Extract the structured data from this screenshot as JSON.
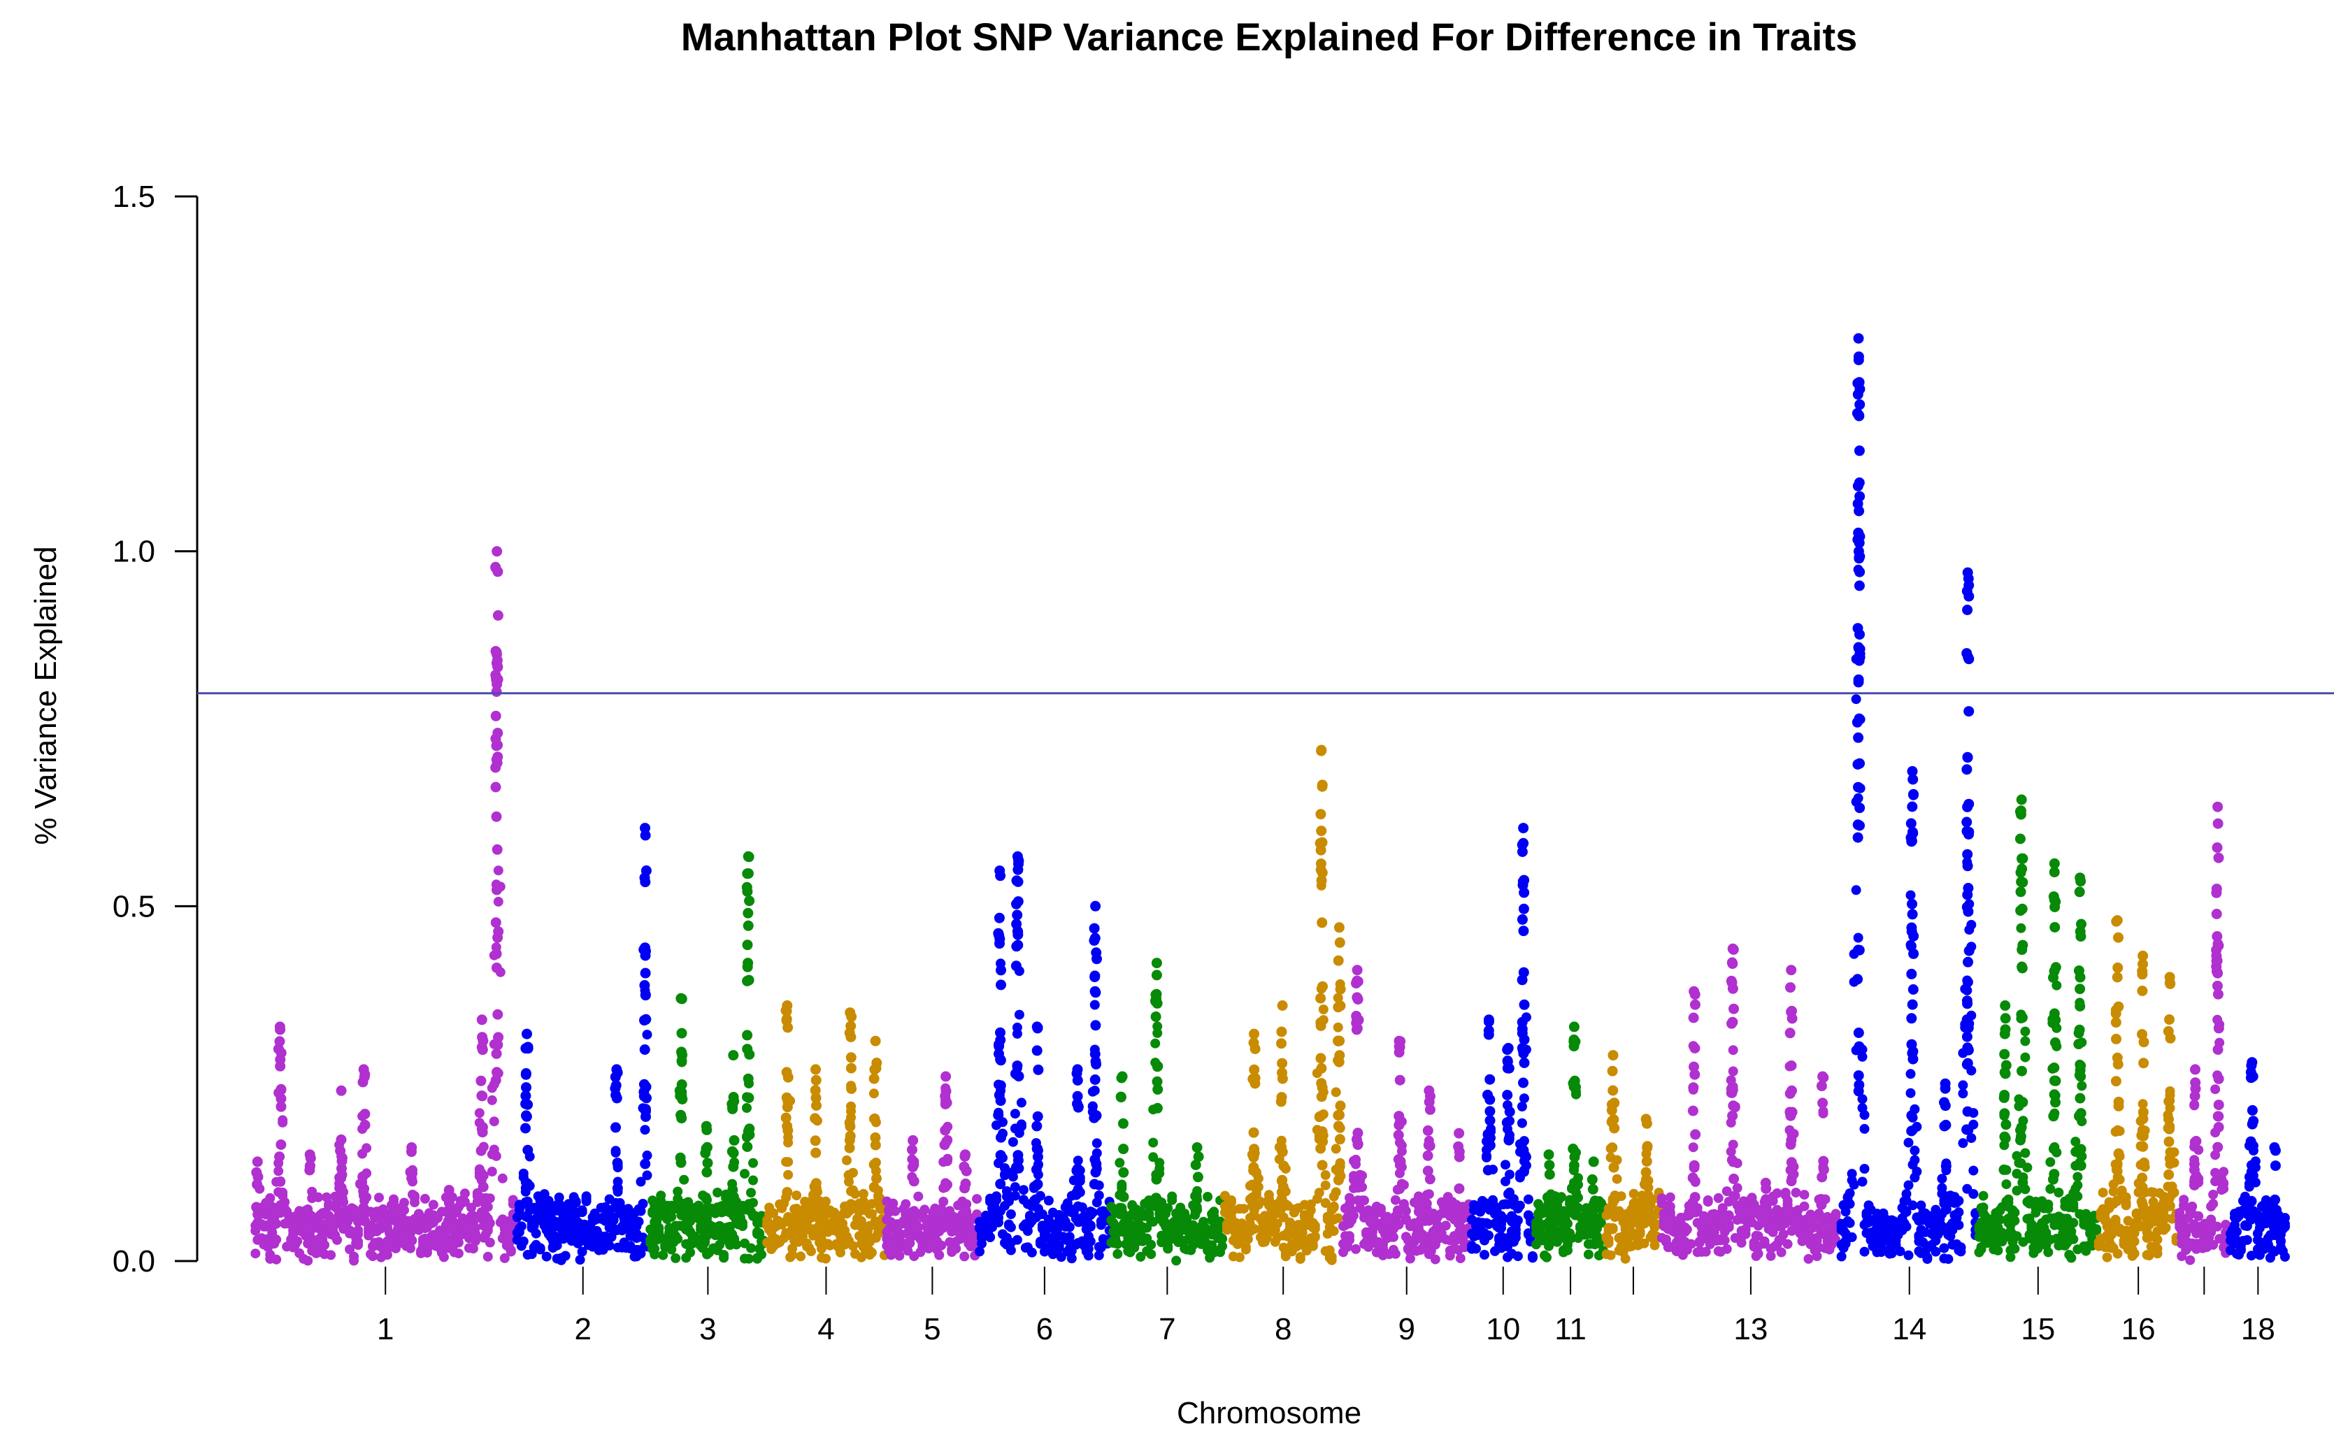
{
  "chart_data": {
    "type": "scatter",
    "subtype": "manhattan",
    "title": "Manhattan Plot SNP Variance Explained For Difference in Traits",
    "xlabel": "Chromosome",
    "ylabel": "% Variance Explained",
    "ylim": [
      0,
      1.5
    ],
    "yticks": [
      {
        "value": 0.0,
        "label": "0.0"
      },
      {
        "value": 0.5,
        "label": "0.5"
      },
      {
        "value": 1.0,
        "label": "1.0"
      },
      {
        "value": 1.5,
        "label": "1.5"
      }
    ],
    "threshold": {
      "value": 0.8,
      "color": "#4B4BB0"
    },
    "grid": false,
    "legend": "none",
    "colors": {
      "purple": "#B030D0",
      "blue": "#0000F5",
      "green": "#078A07",
      "gold": "#C98B00"
    },
    "chromosomes": [
      {
        "id": 1,
        "tick_label": "1",
        "length": 175,
        "color": "purple",
        "peaks": [
          [
            2,
            0.14
          ],
          [
            17,
            0.33
          ],
          [
            37,
            0.15
          ],
          [
            58,
            0.24
          ],
          [
            73,
            0.27
          ],
          [
            105,
            0.16
          ],
          [
            130,
            0.1
          ],
          [
            152,
            0.34
          ],
          [
            162,
            1.0
          ]
        ]
      },
      {
        "id": 2,
        "tick_label": "2",
        "length": 89,
        "color": "blue",
        "peaks": [
          [
            7,
            0.32
          ],
          [
            35,
            0.08
          ],
          [
            67,
            0.27
          ],
          [
            86,
            0.61
          ]
        ]
      },
      {
        "id": 3,
        "tick_label": "3",
        "length": 78,
        "color": "green",
        "peaks": [
          [
            21,
            0.37
          ],
          [
            38,
            0.19
          ],
          [
            56,
            0.29
          ],
          [
            66,
            0.57
          ]
        ]
      },
      {
        "id": 4,
        "tick_label": "4",
        "length": 80,
        "color": "gold",
        "peaks": [
          [
            14,
            0.36
          ],
          [
            33,
            0.27
          ],
          [
            56,
            0.35
          ],
          [
            73,
            0.31
          ]
        ]
      },
      {
        "id": 5,
        "tick_label": "5",
        "length": 62,
        "color": "purple",
        "peaks": [
          [
            18,
            0.17
          ],
          [
            40,
            0.26
          ],
          [
            53,
            0.15
          ]
        ]
      },
      {
        "id": 6,
        "tick_label": "6",
        "length": 88,
        "color": "blue",
        "peaks": [
          [
            14,
            0.55
          ],
          [
            26,
            0.57
          ],
          [
            39,
            0.33
          ],
          [
            66,
            0.27
          ],
          [
            78,
            0.5
          ]
        ]
      },
      {
        "id": 7,
        "tick_label": "7",
        "length": 76,
        "color": "green",
        "peaks": [
          [
            8,
            0.26
          ],
          [
            31,
            0.42
          ],
          [
            58,
            0.16
          ]
        ]
      },
      {
        "id": 8,
        "tick_label": "8",
        "length": 79,
        "color": "gold",
        "peaks": [
          [
            20,
            0.32
          ],
          [
            39,
            0.36
          ],
          [
            65,
            0.72
          ],
          [
            77,
            0.47
          ]
        ]
      },
      {
        "id": 9,
        "tick_label": "9",
        "length": 86,
        "color": "purple",
        "peaks": [
          [
            10,
            0.41
          ],
          [
            38,
            0.31
          ],
          [
            58,
            0.24
          ],
          [
            78,
            0.18
          ]
        ]
      },
      {
        "id": 10,
        "tick_label": "10",
        "length": 43,
        "color": "blue",
        "peaks": [
          [
            12,
            0.34
          ],
          [
            25,
            0.3
          ],
          [
            35,
            0.61
          ]
        ]
      },
      {
        "id": 11,
        "tick_label": "11",
        "length": 47,
        "color": "green",
        "peaks": [
          [
            9,
            0.15
          ],
          [
            26,
            0.33
          ],
          [
            39,
            0.14
          ]
        ]
      },
      {
        "id": 12,
        "length": 37,
        "color": "gold",
        "peaks": [
          [
            5,
            0.29
          ],
          [
            27,
            0.2
          ]
        ]
      },
      {
        "id": 13,
        "tick_label": "13",
        "length": 120,
        "color": "purple",
        "peaks": [
          [
            22,
            0.38
          ],
          [
            48,
            0.44
          ],
          [
            70,
            0.11
          ],
          [
            87,
            0.41
          ],
          [
            108,
            0.26
          ]
        ]
      },
      {
        "id": 14,
        "tick_label": "14",
        "length": 92,
        "color": "blue",
        "peaks": [
          [
            12,
            1.3
          ],
          [
            48,
            0.69
          ],
          [
            70,
            0.25
          ],
          [
            85,
            0.97
          ]
        ]
      },
      {
        "id": 15,
        "tick_label": "15",
        "length": 80,
        "color": "green",
        "peaks": [
          [
            18,
            0.36
          ],
          [
            29,
            0.65
          ],
          [
            51,
            0.56
          ],
          [
            68,
            0.54
          ]
        ]
      },
      {
        "id": 16,
        "tick_label": "16",
        "length": 54,
        "color": "gold",
        "peaks": [
          [
            13,
            0.48
          ],
          [
            30,
            0.43
          ],
          [
            48,
            0.4
          ]
        ]
      },
      {
        "id": 17,
        "length": 34,
        "color": "purple",
        "peaks": [
          [
            11,
            0.27
          ],
          [
            26,
            0.64
          ]
        ]
      },
      {
        "id": 18,
        "tick_label": "18",
        "length": 38,
        "color": "blue",
        "peaks": [
          [
            15,
            0.28
          ],
          [
            30,
            0.16
          ]
        ]
      }
    ]
  }
}
